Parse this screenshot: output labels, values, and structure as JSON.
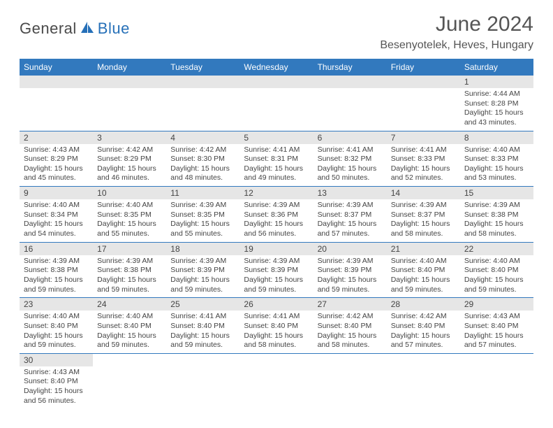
{
  "logo": {
    "part1": "General",
    "part2": "Blue"
  },
  "title": "June 2024",
  "location": "Besenyotelek, Heves, Hungary",
  "colors": {
    "header_bg": "#3279be",
    "header_text": "#ffffff",
    "daynum_bg": "#e6e6e6",
    "cell_border": "#3279be",
    "logo_blue": "#2670b8",
    "logo_gray": "#4a4a4a"
  },
  "daysOfWeek": [
    "Sunday",
    "Monday",
    "Tuesday",
    "Wednesday",
    "Thursday",
    "Friday",
    "Saturday"
  ],
  "weeks": [
    [
      null,
      null,
      null,
      null,
      null,
      null,
      {
        "n": "1",
        "sunrise": "Sunrise: 4:44 AM",
        "sunset": "Sunset: 8:28 PM",
        "daylight": "Daylight: 15 hours and 43 minutes."
      }
    ],
    [
      {
        "n": "2",
        "sunrise": "Sunrise: 4:43 AM",
        "sunset": "Sunset: 8:29 PM",
        "daylight": "Daylight: 15 hours and 45 minutes."
      },
      {
        "n": "3",
        "sunrise": "Sunrise: 4:42 AM",
        "sunset": "Sunset: 8:29 PM",
        "daylight": "Daylight: 15 hours and 46 minutes."
      },
      {
        "n": "4",
        "sunrise": "Sunrise: 4:42 AM",
        "sunset": "Sunset: 8:30 PM",
        "daylight": "Daylight: 15 hours and 48 minutes."
      },
      {
        "n": "5",
        "sunrise": "Sunrise: 4:41 AM",
        "sunset": "Sunset: 8:31 PM",
        "daylight": "Daylight: 15 hours and 49 minutes."
      },
      {
        "n": "6",
        "sunrise": "Sunrise: 4:41 AM",
        "sunset": "Sunset: 8:32 PM",
        "daylight": "Daylight: 15 hours and 50 minutes."
      },
      {
        "n": "7",
        "sunrise": "Sunrise: 4:41 AM",
        "sunset": "Sunset: 8:33 PM",
        "daylight": "Daylight: 15 hours and 52 minutes."
      },
      {
        "n": "8",
        "sunrise": "Sunrise: 4:40 AM",
        "sunset": "Sunset: 8:33 PM",
        "daylight": "Daylight: 15 hours and 53 minutes."
      }
    ],
    [
      {
        "n": "9",
        "sunrise": "Sunrise: 4:40 AM",
        "sunset": "Sunset: 8:34 PM",
        "daylight": "Daylight: 15 hours and 54 minutes."
      },
      {
        "n": "10",
        "sunrise": "Sunrise: 4:40 AM",
        "sunset": "Sunset: 8:35 PM",
        "daylight": "Daylight: 15 hours and 55 minutes."
      },
      {
        "n": "11",
        "sunrise": "Sunrise: 4:39 AM",
        "sunset": "Sunset: 8:35 PM",
        "daylight": "Daylight: 15 hours and 55 minutes."
      },
      {
        "n": "12",
        "sunrise": "Sunrise: 4:39 AM",
        "sunset": "Sunset: 8:36 PM",
        "daylight": "Daylight: 15 hours and 56 minutes."
      },
      {
        "n": "13",
        "sunrise": "Sunrise: 4:39 AM",
        "sunset": "Sunset: 8:37 PM",
        "daylight": "Daylight: 15 hours and 57 minutes."
      },
      {
        "n": "14",
        "sunrise": "Sunrise: 4:39 AM",
        "sunset": "Sunset: 8:37 PM",
        "daylight": "Daylight: 15 hours and 58 minutes."
      },
      {
        "n": "15",
        "sunrise": "Sunrise: 4:39 AM",
        "sunset": "Sunset: 8:38 PM",
        "daylight": "Daylight: 15 hours and 58 minutes."
      }
    ],
    [
      {
        "n": "16",
        "sunrise": "Sunrise: 4:39 AM",
        "sunset": "Sunset: 8:38 PM",
        "daylight": "Daylight: 15 hours and 59 minutes."
      },
      {
        "n": "17",
        "sunrise": "Sunrise: 4:39 AM",
        "sunset": "Sunset: 8:38 PM",
        "daylight": "Daylight: 15 hours and 59 minutes."
      },
      {
        "n": "18",
        "sunrise": "Sunrise: 4:39 AM",
        "sunset": "Sunset: 8:39 PM",
        "daylight": "Daylight: 15 hours and 59 minutes."
      },
      {
        "n": "19",
        "sunrise": "Sunrise: 4:39 AM",
        "sunset": "Sunset: 8:39 PM",
        "daylight": "Daylight: 15 hours and 59 minutes."
      },
      {
        "n": "20",
        "sunrise": "Sunrise: 4:39 AM",
        "sunset": "Sunset: 8:39 PM",
        "daylight": "Daylight: 15 hours and 59 minutes."
      },
      {
        "n": "21",
        "sunrise": "Sunrise: 4:40 AM",
        "sunset": "Sunset: 8:40 PM",
        "daylight": "Daylight: 15 hours and 59 minutes."
      },
      {
        "n": "22",
        "sunrise": "Sunrise: 4:40 AM",
        "sunset": "Sunset: 8:40 PM",
        "daylight": "Daylight: 15 hours and 59 minutes."
      }
    ],
    [
      {
        "n": "23",
        "sunrise": "Sunrise: 4:40 AM",
        "sunset": "Sunset: 8:40 PM",
        "daylight": "Daylight: 15 hours and 59 minutes."
      },
      {
        "n": "24",
        "sunrise": "Sunrise: 4:40 AM",
        "sunset": "Sunset: 8:40 PM",
        "daylight": "Daylight: 15 hours and 59 minutes."
      },
      {
        "n": "25",
        "sunrise": "Sunrise: 4:41 AM",
        "sunset": "Sunset: 8:40 PM",
        "daylight": "Daylight: 15 hours and 59 minutes."
      },
      {
        "n": "26",
        "sunrise": "Sunrise: 4:41 AM",
        "sunset": "Sunset: 8:40 PM",
        "daylight": "Daylight: 15 hours and 58 minutes."
      },
      {
        "n": "27",
        "sunrise": "Sunrise: 4:42 AM",
        "sunset": "Sunset: 8:40 PM",
        "daylight": "Daylight: 15 hours and 58 minutes."
      },
      {
        "n": "28",
        "sunrise": "Sunrise: 4:42 AM",
        "sunset": "Sunset: 8:40 PM",
        "daylight": "Daylight: 15 hours and 57 minutes."
      },
      {
        "n": "29",
        "sunrise": "Sunrise: 4:43 AM",
        "sunset": "Sunset: 8:40 PM",
        "daylight": "Daylight: 15 hours and 57 minutes."
      }
    ],
    [
      {
        "n": "30",
        "sunrise": "Sunrise: 4:43 AM",
        "sunset": "Sunset: 8:40 PM",
        "daylight": "Daylight: 15 hours and 56 minutes."
      },
      null,
      null,
      null,
      null,
      null,
      null
    ]
  ]
}
